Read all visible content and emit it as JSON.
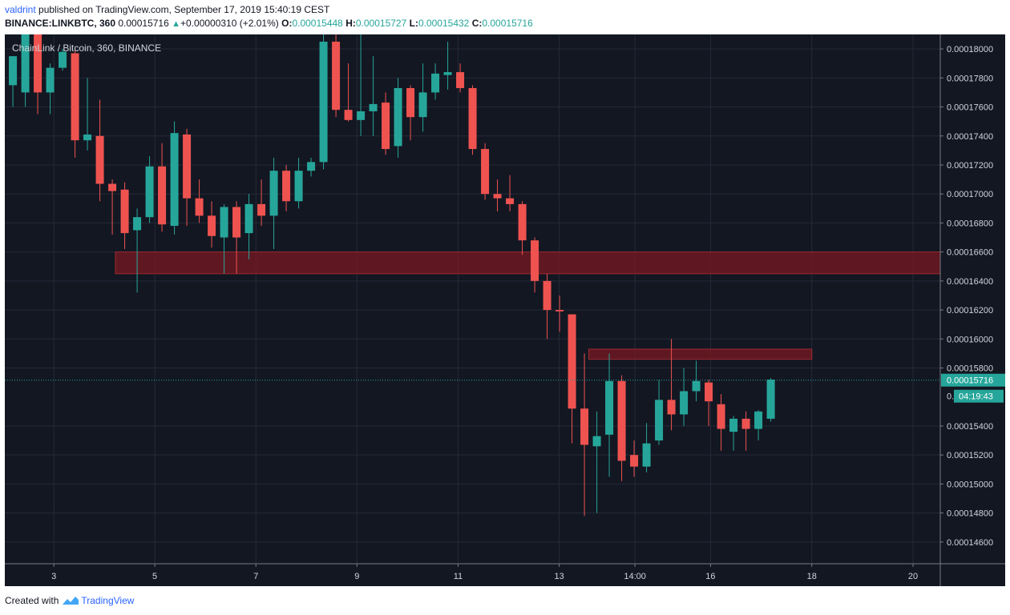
{
  "header": {
    "user": "valdrint",
    "published_text": " published on TradingView.com, September 17, 2019 15:40:19 CEST",
    "symbol": "BINANCE:LINKBTC, 360",
    "last": "0.00015716",
    "arrow": "▲",
    "change": "+0.00000310 (+2.01%)",
    "o_label": "O:",
    "o": "0.00015448",
    "h_label": "H:",
    "h": "0.00015727",
    "l_label": "L:",
    "l": "0.00015432",
    "c_label": "C:",
    "c": "0.00015716"
  },
  "footer": {
    "created_with": "Created with",
    "brand": "TradingView"
  },
  "chart_data": {
    "type": "candlestick",
    "title": "ChainLink / Bitcoin, 360, BINANCE",
    "ylim": [
      0.0001445,
      0.000181
    ],
    "x_ticks": [
      {
        "label": "3",
        "x": 3.95
      },
      {
        "label": "5",
        "x": 12.07
      },
      {
        "label": "7",
        "x": 20.21
      },
      {
        "label": "9",
        "x": 28.34
      },
      {
        "label": "11",
        "x": 36.48
      },
      {
        "label": "13",
        "x": 44.62
      },
      {
        "label": "14:00",
        "x": 50.72
      },
      {
        "label": "16",
        "x": 56.8
      },
      {
        "label": "18",
        "x": 64.95
      },
      {
        "label": "20",
        "x": 73.1
      }
    ],
    "y_ticks": [
      "0.00018000",
      "0.00017800",
      "0.00017600",
      "0.00017400",
      "0.00017200",
      "0.00017000",
      "0.00016800",
      "0.00016600",
      "0.00016400",
      "0.00016200",
      "0.00016000",
      "0.00015800",
      "0.00015400",
      "0.00015200",
      "0.00015000",
      "0.00014800",
      "0.00014600"
    ],
    "y_tick_values": [
      0.00018,
      0.000178,
      0.000176,
      0.000174,
      0.000172,
      0.00017,
      0.000168,
      0.000166,
      0.000164,
      0.000162,
      0.00016,
      0.000158,
      0.000154,
      0.000152,
      0.00015,
      0.000148,
      0.000146
    ],
    "last_price": {
      "label": "0.00015716",
      "value": 0.00015716
    },
    "countdown": "04:19:43",
    "countdown_partial_tick": "0.",
    "zones": [
      {
        "x_start": 8.9,
        "x_end": 75.4,
        "y_low": 0.0001645,
        "y_high": 0.000166
      },
      {
        "x_start": 47.0,
        "x_end": 64.95,
        "y_low": 0.0001586,
        "y_high": 0.0001593
      }
    ],
    "candles": [
      {
        "x": 0.65,
        "o": 0.0001775,
        "h": 0.0001795,
        "l": 0.000176,
        "c": 0.0001795
      },
      {
        "x": 1.65,
        "o": 0.000177,
        "h": 0.000181,
        "l": 0.000176,
        "c": 0.000181
      },
      {
        "x": 2.65,
        "o": 0.000181,
        "h": 0.000181,
        "l": 0.0001755,
        "c": 0.000177
      },
      {
        "x": 3.65,
        "o": 0.000177,
        "h": 0.000179,
        "l": 0.0001755,
        "c": 0.0001787
      },
      {
        "x": 4.65,
        "o": 0.0001787,
        "h": 0.00018,
        "l": 0.0001785,
        "c": 0.0001798
      },
      {
        "x": 5.65,
        "o": 0.0001797,
        "h": 0.00018,
        "l": 0.0001725,
        "c": 0.0001737
      },
      {
        "x": 6.65,
        "o": 0.0001737,
        "h": 0.000178,
        "l": 0.000173,
        "c": 0.0001741
      },
      {
        "x": 7.65,
        "o": 0.000174,
        "h": 0.0001765,
        "l": 0.0001695,
        "c": 0.0001707
      },
      {
        "x": 8.65,
        "o": 0.0001707,
        "h": 0.000171,
        "l": 0.0001672,
        "c": 0.0001702
      },
      {
        "x": 9.65,
        "o": 0.0001703,
        "h": 0.0001708,
        "l": 0.0001662,
        "c": 0.0001673
      },
      {
        "x": 10.65,
        "o": 0.0001675,
        "h": 0.000169,
        "l": 0.0001632,
        "c": 0.0001684
      },
      {
        "x": 11.65,
        "o": 0.0001684,
        "h": 0.0001726,
        "l": 0.000168,
        "c": 0.0001719
      },
      {
        "x": 12.65,
        "o": 0.0001719,
        "h": 0.0001735,
        "l": 0.0001674,
        "c": 0.0001679
      },
      {
        "x": 13.65,
        "o": 0.0001678,
        "h": 0.000175,
        "l": 0.0001672,
        "c": 0.0001742
      },
      {
        "x": 14.65,
        "o": 0.0001741,
        "h": 0.0001745,
        "l": 0.0001678,
        "c": 0.0001697
      },
      {
        "x": 15.65,
        "o": 0.0001697,
        "h": 0.000171,
        "l": 0.000168,
        "c": 0.0001685
      },
      {
        "x": 16.65,
        "o": 0.0001685,
        "h": 0.0001695,
        "l": 0.0001663,
        "c": 0.0001671
      },
      {
        "x": 17.65,
        "o": 0.000167,
        "h": 0.0001693,
        "l": 0.0001645,
        "c": 0.0001691
      },
      {
        "x": 18.65,
        "o": 0.0001691,
        "h": 0.0001695,
        "l": 0.0001645,
        "c": 0.000167
      },
      {
        "x": 19.65,
        "o": 0.0001673,
        "h": 0.00017,
        "l": 0.0001655,
        "c": 0.0001693
      },
      {
        "x": 20.65,
        "o": 0.0001693,
        "h": 0.000171,
        "l": 0.0001678,
        "c": 0.0001685
      },
      {
        "x": 21.65,
        "o": 0.0001685,
        "h": 0.0001725,
        "l": 0.0001662,
        "c": 0.0001716
      },
      {
        "x": 22.65,
        "o": 0.0001716,
        "h": 0.000172,
        "l": 0.0001688,
        "c": 0.0001695
      },
      {
        "x": 23.65,
        "o": 0.0001695,
        "h": 0.0001725,
        "l": 0.000169,
        "c": 0.0001716
      },
      {
        "x": 24.65,
        "o": 0.0001716,
        "h": 0.0001725,
        "l": 0.0001712,
        "c": 0.0001722
      },
      {
        "x": 25.65,
        "o": 0.0001722,
        "h": 0.000181,
        "l": 0.0001717,
        "c": 0.0001805
      },
      {
        "x": 26.65,
        "o": 0.0001805,
        "h": 0.000181,
        "l": 0.0001753,
        "c": 0.0001758
      },
      {
        "x": 27.65,
        "o": 0.0001758,
        "h": 0.000179,
        "l": 0.000175,
        "c": 0.0001751
      },
      {
        "x": 28.65,
        "o": 0.0001751,
        "h": 0.000181,
        "l": 0.000174,
        "c": 0.0001757
      },
      {
        "x": 29.65,
        "o": 0.0001757,
        "h": 0.0001795,
        "l": 0.000174,
        "c": 0.0001762
      },
      {
        "x": 30.65,
        "o": 0.0001763,
        "h": 0.000177,
        "l": 0.0001727,
        "c": 0.0001731
      },
      {
        "x": 31.65,
        "o": 0.0001733,
        "h": 0.000178,
        "l": 0.0001725,
        "c": 0.0001773
      },
      {
        "x": 32.65,
        "o": 0.0001773,
        "h": 0.0001775,
        "l": 0.0001737,
        "c": 0.0001753
      },
      {
        "x": 33.65,
        "o": 0.0001753,
        "h": 0.000179,
        "l": 0.0001743,
        "c": 0.000177
      },
      {
        "x": 34.65,
        "o": 0.000177,
        "h": 0.000179,
        "l": 0.0001765,
        "c": 0.0001783
      },
      {
        "x": 35.65,
        "o": 0.0001782,
        "h": 0.0001805,
        "l": 0.0001772,
        "c": 0.0001784
      },
      {
        "x": 36.65,
        "o": 0.0001784,
        "h": 0.000179,
        "l": 0.000177,
        "c": 0.0001773
      },
      {
        "x": 37.65,
        "o": 0.0001773,
        "h": 0.0001775,
        "l": 0.0001727,
        "c": 0.0001731
      },
      {
        "x": 38.65,
        "o": 0.0001731,
        "h": 0.0001735,
        "l": 0.0001696,
        "c": 0.00017
      },
      {
        "x": 39.65,
        "o": 0.00017,
        "h": 0.000171,
        "l": 0.0001688,
        "c": 0.0001697
      },
      {
        "x": 40.65,
        "o": 0.0001697,
        "h": 0.0001713,
        "l": 0.0001688,
        "c": 0.0001693
      },
      {
        "x": 41.65,
        "o": 0.0001693,
        "h": 0.0001695,
        "l": 0.0001658,
        "c": 0.0001668
      },
      {
        "x": 42.65,
        "o": 0.0001668,
        "h": 0.000167,
        "l": 0.0001632,
        "c": 0.000164
      },
      {
        "x": 43.65,
        "o": 0.000164,
        "h": 0.0001645,
        "l": 0.00016,
        "c": 0.000162
      },
      {
        "x": 44.65,
        "o": 0.000162,
        "h": 0.000163,
        "l": 0.0001605,
        "c": 0.0001619
      },
      {
        "x": 45.65,
        "o": 0.0001617,
        "h": 0.0001617,
        "l": 0.0001528,
        "c": 0.0001552
      },
      {
        "x": 46.65,
        "o": 0.0001552,
        "h": 0.000159,
        "l": 0.0001478,
        "c": 0.0001527
      },
      {
        "x": 47.65,
        "o": 0.0001526,
        "h": 0.000155,
        "l": 0.000148,
        "c": 0.0001533
      },
      {
        "x": 48.65,
        "o": 0.0001534,
        "h": 0.000159,
        "l": 0.0001505,
        "c": 0.0001571
      },
      {
        "x": 49.65,
        "o": 0.0001571,
        "h": 0.0001575,
        "l": 0.0001502,
        "c": 0.0001516
      },
      {
        "x": 50.65,
        "o": 0.000152,
        "h": 0.000153,
        "l": 0.0001505,
        "c": 0.0001512
      },
      {
        "x": 51.65,
        "o": 0.0001512,
        "h": 0.0001542,
        "l": 0.0001508,
        "c": 0.0001528
      },
      {
        "x": 52.65,
        "o": 0.000153,
        "h": 0.0001572,
        "l": 0.0001527,
        "c": 0.0001558
      },
      {
        "x": 53.65,
        "o": 0.0001558,
        "h": 0.00016,
        "l": 0.0001537,
        "c": 0.0001548
      },
      {
        "x": 54.65,
        "o": 0.0001548,
        "h": 0.000158,
        "l": 0.000154,
        "c": 0.0001564
      },
      {
        "x": 55.65,
        "o": 0.0001564,
        "h": 0.0001585,
        "l": 0.0001557,
        "c": 0.0001571
      },
      {
        "x": 56.65,
        "o": 0.000157,
        "h": 0.0001572,
        "l": 0.000154,
        "c": 0.0001557
      },
      {
        "x": 57.65,
        "o": 0.0001555,
        "h": 0.0001562,
        "l": 0.0001523,
        "c": 0.0001538
      },
      {
        "x": 58.65,
        "o": 0.0001536,
        "h": 0.0001547,
        "l": 0.0001523,
        "c": 0.0001545
      },
      {
        "x": 59.65,
        "o": 0.0001545,
        "h": 0.000155,
        "l": 0.0001523,
        "c": 0.0001538
      },
      {
        "x": 60.65,
        "o": 0.0001538,
        "h": 0.0001551,
        "l": 0.000153,
        "c": 0.000155
      },
      {
        "x": 61.65,
        "o": 0.0001545,
        "h": 0.0001573,
        "l": 0.0001543,
        "c": 0.0001572
      }
    ],
    "colors": {
      "background": "#131722",
      "grid": "#242a38",
      "up": "#26a69a",
      "down": "#ef5350",
      "zone_fill": "#7a1a22",
      "zone_stroke": "#9c2a30",
      "axis_text": "#d1d4dc",
      "axis_line": "#787b86",
      "last_price": "#26a69a"
    }
  }
}
